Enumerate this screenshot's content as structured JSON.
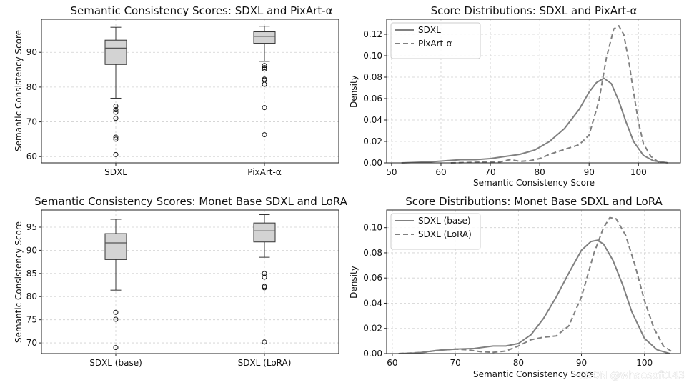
{
  "colors": {
    "box_fill": "#d3d3d3",
    "line": "#808080",
    "box_edge": "#333333",
    "grid": "#d0d0d0"
  },
  "watermark": "CSDN @whaosoft143",
  "chart_data": [
    {
      "type": "box",
      "title": "Semantic Consistency Scores: SDXL and PixArt-α",
      "xlabel": "",
      "ylabel": "Semantic Consistency Score",
      "ylim": [
        58.2,
        99.5
      ],
      "yticks": [
        60,
        70,
        80,
        90
      ],
      "categories": [
        "SDXL",
        "PixArt-α"
      ],
      "boxes": [
        {
          "name": "SDXL",
          "whisker_low": 76.8,
          "q1": 86.5,
          "median": 91.2,
          "q3": 93.5,
          "whisker_high": 97.2,
          "outliers": [
            74.5,
            73.5,
            72.8,
            71.0,
            65.6,
            65.0,
            60.6
          ]
        },
        {
          "name": "PixArt-α",
          "whisker_low": 87.4,
          "q1": 92.6,
          "median": 94.6,
          "q3": 95.9,
          "whisker_high": 97.5,
          "outliers": [
            86.2,
            85.6,
            85.2,
            82.3,
            82.0,
            80.8,
            74.1,
            66.3
          ]
        }
      ]
    },
    {
      "type": "line",
      "title": "Score Distributions: SDXL and PixArt-α",
      "xlabel": "Semantic Consistency Score",
      "ylabel": "Density",
      "xlim": [
        49,
        108.5
      ],
      "ylim": [
        0,
        0.134
      ],
      "xticks": [
        50,
        60,
        70,
        80,
        90,
        100
      ],
      "yticks": [
        0.0,
        0.02,
        0.04,
        0.06,
        0.08,
        0.1,
        0.12
      ],
      "ytick_labels": [
        "0.00",
        "0.02",
        "0.04",
        "0.06",
        "0.08",
        "0.10",
        "0.12"
      ],
      "legend_position": "upper-left",
      "series": [
        {
          "name": "SDXL",
          "style": "solid",
          "x": [
            52,
            55,
            58,
            61,
            64,
            67,
            70,
            73,
            76,
            79,
            82,
            85,
            88,
            90,
            91.5,
            93,
            94.5,
            96,
            97.5,
            99,
            101,
            103,
            106
          ],
          "y": [
            0.0,
            0.0005,
            0.001,
            0.002,
            0.003,
            0.003,
            0.004,
            0.006,
            0.008,
            0.012,
            0.02,
            0.032,
            0.05,
            0.066,
            0.075,
            0.079,
            0.074,
            0.058,
            0.038,
            0.02,
            0.007,
            0.002,
            0.0
          ]
        },
        {
          "name": "PixArt-α",
          "style": "dashed",
          "x": [
            62,
            66,
            70,
            72,
            74,
            76,
            78,
            80,
            82,
            84,
            86,
            88,
            90,
            92,
            93.5,
            95,
            96,
            97,
            98,
            99,
            100,
            101,
            102.5,
            104,
            106
          ],
          "y": [
            0.0,
            0.0005,
            0.001,
            0.001,
            0.003,
            0.0015,
            0.002,
            0.004,
            0.008,
            0.011,
            0.014,
            0.017,
            0.026,
            0.058,
            0.098,
            0.125,
            0.128,
            0.12,
            0.096,
            0.066,
            0.038,
            0.018,
            0.006,
            0.001,
            0.0
          ]
        }
      ]
    },
    {
      "type": "box",
      "title": "Semantic Consistency Scores: Monet Base SDXL and LoRA",
      "xlabel": "",
      "ylabel": "Semantic Consistency Score",
      "ylim": [
        67.7,
        98.7
      ],
      "yticks": [
        70,
        75,
        80,
        85,
        90,
        95
      ],
      "categories": [
        "SDXL (base)",
        "SDXL (LoRA)"
      ],
      "boxes": [
        {
          "name": "SDXL (base)",
          "whisker_low": 81.4,
          "q1": 88.0,
          "median": 91.6,
          "q3": 93.6,
          "whisker_high": 96.7,
          "outliers": [
            76.6,
            75.1,
            69.0
          ]
        },
        {
          "name": "SDXL (LoRA)",
          "whisker_low": 88.5,
          "q1": 91.8,
          "median": 94.2,
          "q3": 95.9,
          "whisker_high": 97.7,
          "outliers": [
            85.0,
            84.2,
            82.2,
            81.9,
            70.2
          ]
        }
      ]
    },
    {
      "type": "line",
      "title": "Score Distributions: Monet Base SDXL and LoRA",
      "xlabel": "Semantic Consistency Score",
      "ylabel": "Density",
      "xlim": [
        59.1,
        105.7
      ],
      "ylim": [
        0,
        0.114
      ],
      "xticks": [
        60,
        70,
        80,
        90,
        100
      ],
      "yticks": [
        0.0,
        0.02,
        0.04,
        0.06,
        0.08,
        0.1
      ],
      "ytick_labels": [
        "0.00",
        "0.02",
        "0.04",
        "0.06",
        "0.08",
        "0.10"
      ],
      "legend_position": "upper-left",
      "series": [
        {
          "name": "SDXL (base)",
          "style": "solid",
          "x": [
            61,
            64,
            67,
            70,
            73,
            76,
            78,
            80,
            82,
            84,
            86,
            88,
            90,
            91.5,
            92.5,
            93.5,
            95,
            96.5,
            98,
            100,
            102,
            104
          ],
          "y": [
            0.0,
            0.0005,
            0.0025,
            0.0035,
            0.004,
            0.006,
            0.006,
            0.008,
            0.015,
            0.028,
            0.045,
            0.064,
            0.082,
            0.089,
            0.09,
            0.087,
            0.074,
            0.055,
            0.033,
            0.012,
            0.003,
            0.0
          ]
        },
        {
          "name": "SDXL (LoRA)",
          "style": "dashed",
          "x": [
            61,
            65,
            68,
            70,
            72,
            74,
            76,
            78,
            80,
            82,
            84,
            86,
            88,
            90,
            92,
            93.5,
            94.5,
            95.5,
            97,
            98.5,
            100,
            101.5,
            103,
            104.5
          ],
          "y": [
            0.0,
            0.001,
            0.003,
            0.0035,
            0.003,
            0.0015,
            0.001,
            0.002,
            0.006,
            0.011,
            0.013,
            0.014,
            0.022,
            0.045,
            0.08,
            0.1,
            0.108,
            0.107,
            0.094,
            0.07,
            0.042,
            0.02,
            0.006,
            0.001
          ]
        }
      ]
    }
  ]
}
